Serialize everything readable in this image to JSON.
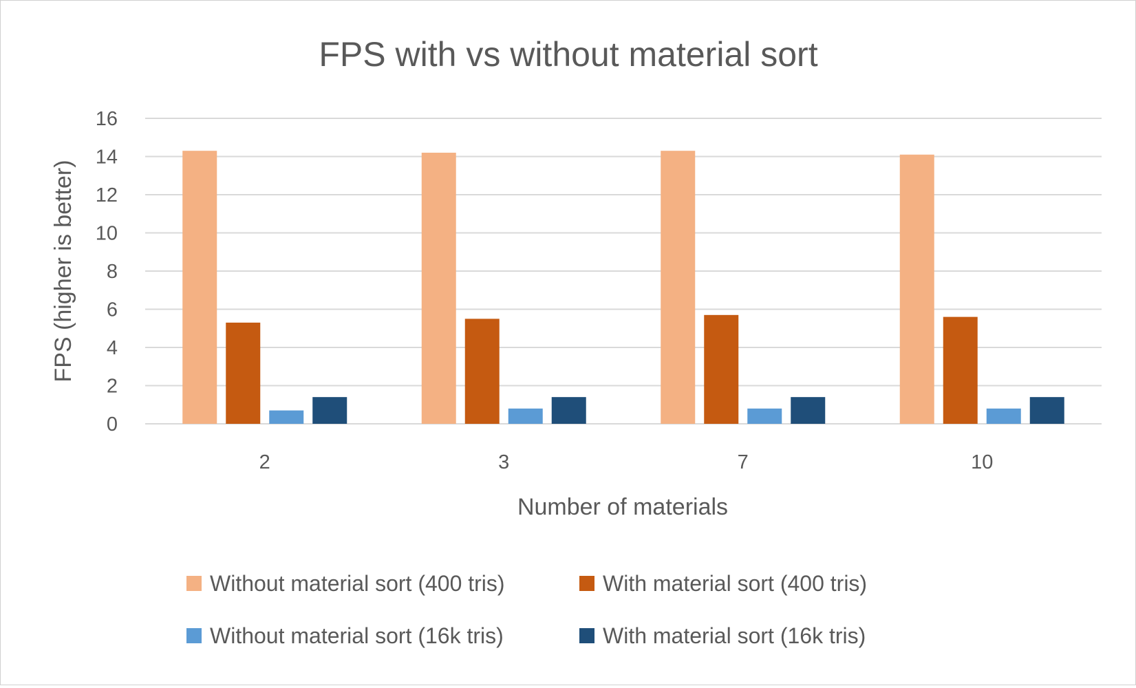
{
  "chart_data": {
    "type": "bar",
    "title": "FPS with vs without material sort",
    "xlabel": "Number of materials",
    "ylabel": "FPS (higher is better)",
    "categories": [
      "2",
      "3",
      "7",
      "10"
    ],
    "ylim": [
      0,
      16
    ],
    "yticks": [
      0,
      2,
      4,
      6,
      8,
      10,
      12,
      14,
      16
    ],
    "grid": true,
    "legend_position": "bottom",
    "series": [
      {
        "name": "Without material sort (400 tris)",
        "color": "#F4B183",
        "values": [
          14.3,
          14.2,
          14.3,
          14.1
        ]
      },
      {
        "name": "With material sort (400 tris)",
        "color": "#C55A11",
        "values": [
          5.3,
          5.5,
          5.7,
          5.6
        ]
      },
      {
        "name": "Without material sort (16k tris)",
        "color": "#5B9BD5",
        "values": [
          0.7,
          0.8,
          0.8,
          0.8
        ]
      },
      {
        "name": "With material sort (16k tris)",
        "color": "#1F4E79",
        "values": [
          1.4,
          1.4,
          1.4,
          1.4
        ]
      }
    ]
  }
}
